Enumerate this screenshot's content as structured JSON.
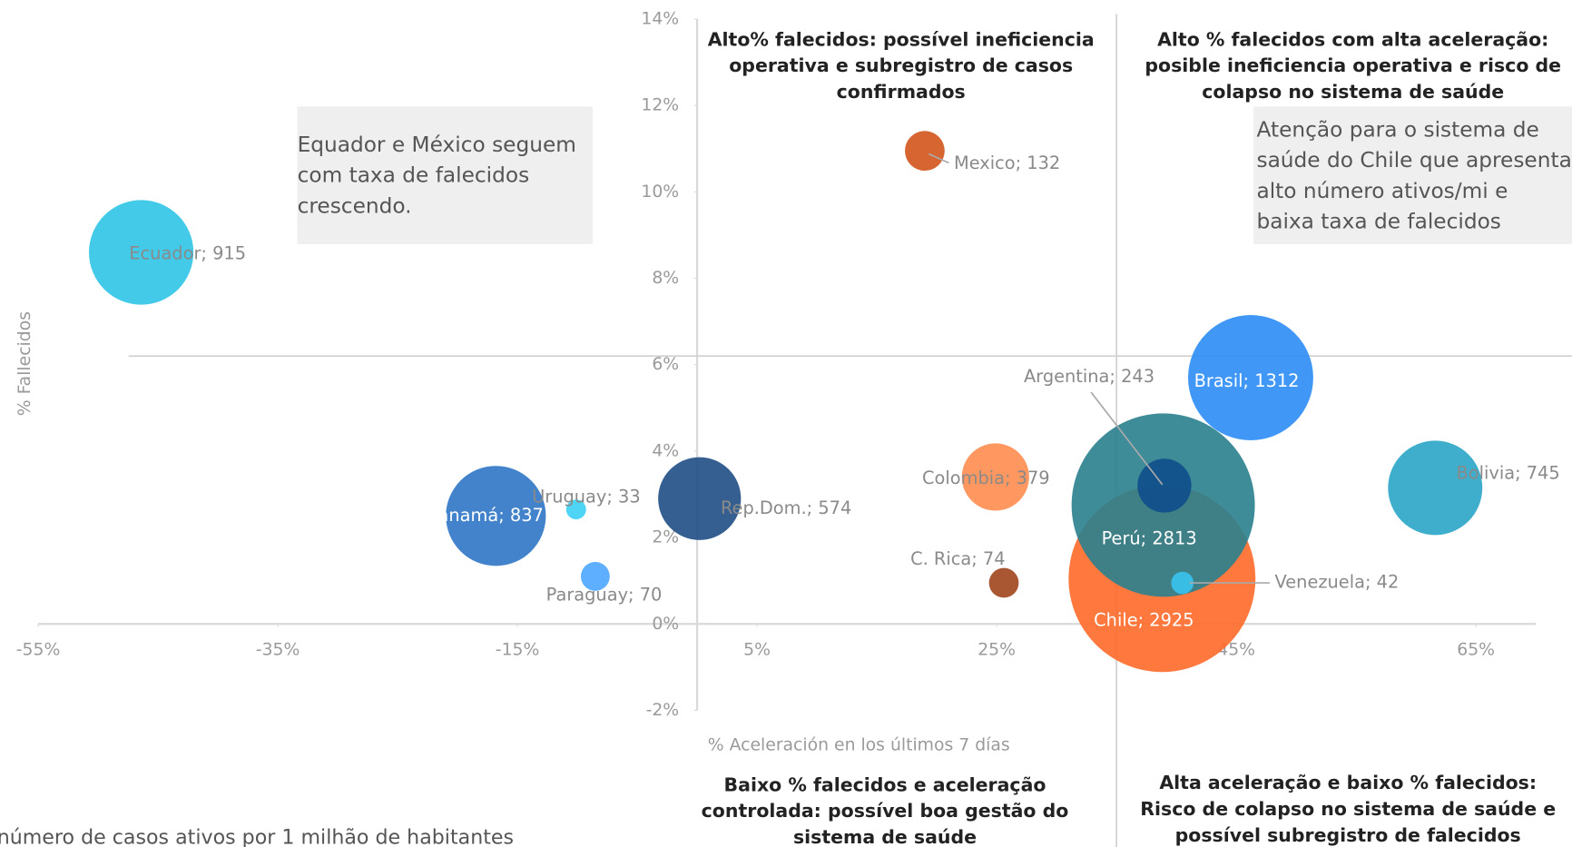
{
  "chart_data": {
    "type": "bubble",
    "x_label": "% Aceleración en los últimos 7 días",
    "y_label": "% Fallecidos",
    "size_note": "número de casos ativos por 1 milhão de habitantes",
    "xlim": [
      -55,
      70
    ],
    "ylim": [
      -2,
      14
    ],
    "xticks": [
      {
        "value": -55,
        "label": "-55%"
      },
      {
        "value": -35,
        "label": "-35%"
      },
      {
        "value": -15,
        "label": "-15%"
      },
      {
        "value": 5,
        "label": "5%"
      },
      {
        "value": 25,
        "label": "25%"
      },
      {
        "value": 45,
        "label": "45%"
      },
      {
        "value": 65,
        "label": "65%"
      }
    ],
    "yticks": [
      {
        "value": -2,
        "label": "-2%"
      },
      {
        "value": 0,
        "label": "0%"
      },
      {
        "value": 2,
        "label": "2%"
      },
      {
        "value": 4,
        "label": "4%"
      },
      {
        "value": 6,
        "label": "6%"
      },
      {
        "value": 8,
        "label": "8%"
      },
      {
        "value": 10,
        "label": "10%"
      },
      {
        "value": 12,
        "label": "12%"
      },
      {
        "value": 14,
        "label": "14%"
      }
    ],
    "reference_lines": {
      "x": 35,
      "y": 6.2
    },
    "points": [
      {
        "label": "Ecuador; 915",
        "x": -46.4,
        "y": 8.6,
        "size": 915,
        "color": "#2ec4e6"
      },
      {
        "label": "Mexico; 132",
        "x": 19.0,
        "y": 10.95,
        "size": 132,
        "color": "#d2541c"
      },
      {
        "label": "Panamá; 837",
        "x": -16.8,
        "y": 2.5,
        "size": 837,
        "color": "#2e75c6"
      },
      {
        "label": "Uruguay; 33",
        "x": -10.1,
        "y": 2.65,
        "size": 33,
        "color": "#3bd0f5"
      },
      {
        "label": "Paraguay; 70",
        "x": -8.5,
        "y": 1.1,
        "size": 70,
        "color": "#4da6ff"
      },
      {
        "label": "Rep.Dom.; 574",
        "x": 0.2,
        "y": 2.9,
        "size": 574,
        "color": "#1f4e85"
      },
      {
        "label": "Colombia; 379",
        "x": 24.9,
        "y": 3.4,
        "size": 379,
        "color": "#ff8c4f"
      },
      {
        "label": "C. Rica; 74",
        "x": 25.6,
        "y": 0.95,
        "size": 74,
        "color": "#a0441c"
      },
      {
        "label": "Chile; 2925",
        "x": 38.8,
        "y": 1.05,
        "size": 2925,
        "color": "#ff6a2a"
      },
      {
        "label": "Perú; 2813",
        "x": 38.9,
        "y": 2.75,
        "size": 2813,
        "color": "#2a7f8e"
      },
      {
        "label": "Argentina; 243",
        "x": 39.0,
        "y": 3.2,
        "size": 243,
        "color": "#0e4e8c"
      },
      {
        "label": "Venezuela;  42",
        "x": 40.5,
        "y": 0.95,
        "size": 42,
        "color": "#3ac4f0"
      },
      {
        "label": "Brasil; 1312",
        "x": 46.2,
        "y": 5.7,
        "size": 1312,
        "color": "#2b8cf5"
      },
      {
        "label": "Bolivia; 745",
        "x": 61.6,
        "y": 3.15,
        "size": 745,
        "color": "#2aa5c6"
      }
    ],
    "quadrant_notes": [
      {
        "lines": [
          "Alto% falecidos: possível ineficiencia",
          "operativa e subregistro de casos",
          "confirmados"
        ]
      },
      {
        "lines": [
          "Alto % falecidos com alta aceleração:",
          "posible ineficiencia operativa e risco de",
          "colapso no sistema de saúde"
        ]
      },
      {
        "lines": [
          "Baixo % falecidos e aceleração",
          "controlada: possível boa gestão do",
          "sistema de saúde"
        ]
      },
      {
        "lines": [
          "Alta aceleração e baixo % falecidos:",
          "Risco de colapso no sistema de saúde e",
          "possível subregistro de falecidos"
        ]
      }
    ],
    "boxes": [
      {
        "lines": [
          "Equador e México seguem",
          "com taxa de falecidos",
          "crescendo."
        ]
      },
      {
        "lines": [
          "Atenção para o sistema de",
          "saúde do Chile que apresenta",
          "alto número ativos/mi e",
          "baixa taxa de falecidos"
        ]
      }
    ]
  }
}
